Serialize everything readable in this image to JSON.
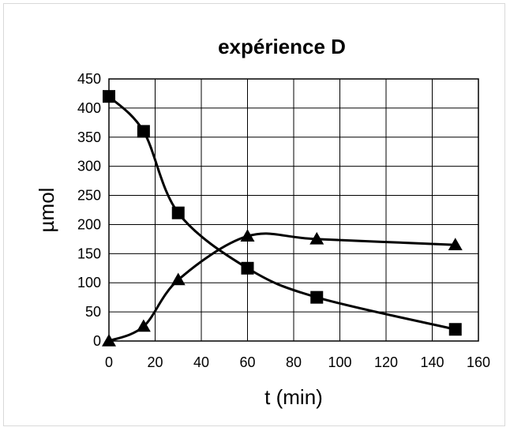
{
  "chart_data": {
    "type": "scatter",
    "title": "expérience D",
    "xlabel": "t (min)",
    "ylabel": "µmol",
    "xlim": [
      0,
      160
    ],
    "ylim": [
      0,
      450
    ],
    "x_ticks": [
      "0",
      "20",
      "40",
      "60",
      "80",
      "100",
      "120",
      "140",
      "160"
    ],
    "y_ticks": [
      "0",
      "50",
      "100",
      "150",
      "200",
      "250",
      "300",
      "350",
      "400",
      "450"
    ],
    "grid": true,
    "legend": "none",
    "smooth_lines": true,
    "series": [
      {
        "marker": "square",
        "color": "#000000",
        "x": [
          0,
          15,
          30,
          60,
          90,
          150
        ],
        "y": [
          420,
          360,
          220,
          125,
          75,
          20
        ]
      },
      {
        "marker": "triangle",
        "color": "#000000",
        "x": [
          0,
          15,
          30,
          60,
          90,
          150
        ],
        "y": [
          0,
          25,
          105,
          180,
          175,
          165
        ]
      }
    ]
  }
}
